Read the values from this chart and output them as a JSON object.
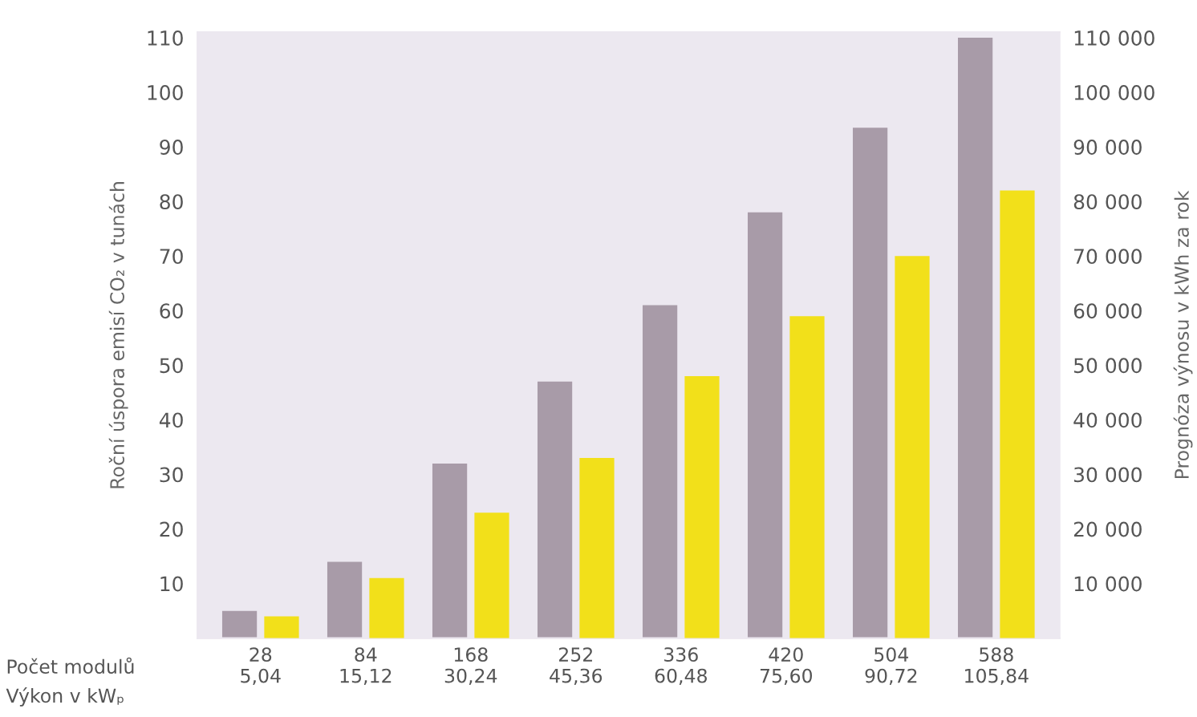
{
  "chart_data": {
    "type": "bar",
    "categories": [
      "28\n5,04",
      "84\n15,12",
      "168\n30,24",
      "252\n45,36",
      "336\n60,48",
      "420\n75,60",
      "504\n90,72",
      "588\n105,84"
    ],
    "series": [
      {
        "color": "#a89ba8",
        "values": [
          5,
          14,
          32,
          47,
          61,
          78,
          93.5,
          110
        ]
      },
      {
        "color": "#f2e01a",
        "axis": "y2",
        "values": [
          4000,
          11000,
          23000,
          33000,
          48000,
          59000,
          70000,
          82000
        ]
      }
    ],
    "ylabel": "Roční úspora emisí CO₂ v tunách",
    "y2label": "Prognóza výnosu v kWh za rok",
    "ylim": [
      0,
      111
    ],
    "yticks": [
      10,
      20,
      30,
      40,
      50,
      60,
      70,
      80,
      90,
      100,
      110
    ],
    "y2lim": [
      0,
      111000
    ],
    "y2ticks": [
      {
        "value": 10000,
        "label": "10 000"
      },
      {
        "value": 20000,
        "label": "20 000"
      },
      {
        "value": 30000,
        "label": "30 000"
      },
      {
        "value": 40000,
        "label": "40 000"
      },
      {
        "value": 50000,
        "label": "50 000"
      },
      {
        "value": 60000,
        "label": "60 000"
      },
      {
        "value": 70000,
        "label": "70 000"
      },
      {
        "value": 80000,
        "label": "80 000"
      },
      {
        "value": 90000,
        "label": "90 000"
      },
      {
        "value": 100000,
        "label": "100 000"
      },
      {
        "value": 110000,
        "label": "110 000"
      }
    ],
    "annotations": [
      "Počet modulů",
      "Výkon v kWₚ"
    ],
    "grid": false,
    "legend": false
  }
}
